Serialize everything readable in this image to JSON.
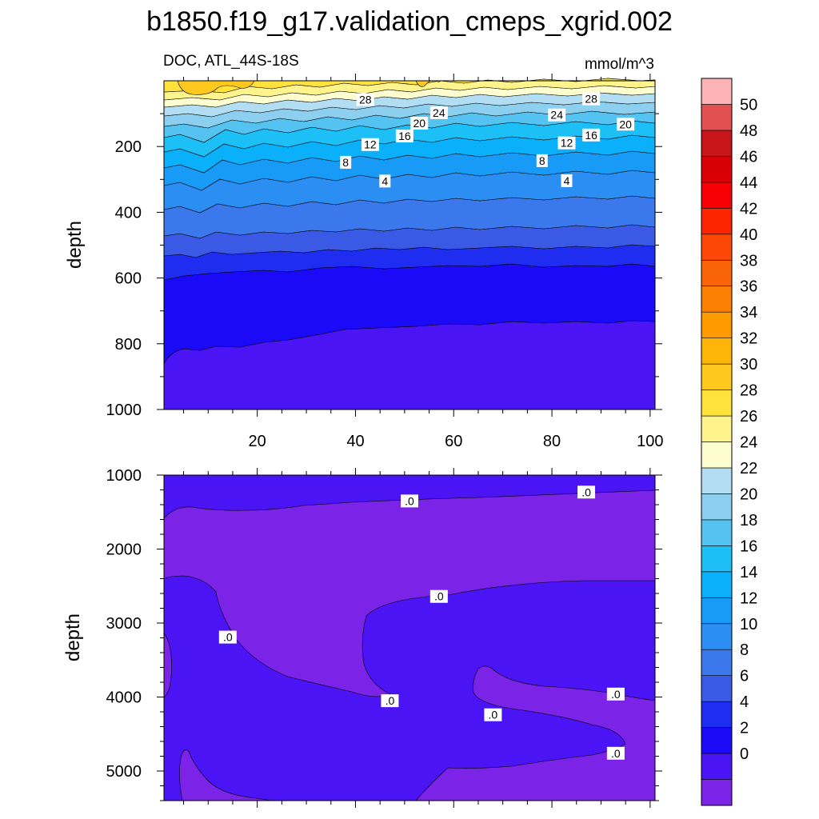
{
  "title": "b1850.f19_g17.validation_cmeps_xgrid.002",
  "left_subtitle": "DOC, ATL_44S-18S",
  "right_subtitle": "mmol/m^3",
  "colors": {
    "levels": [
      "#7b24e8",
      "#4a14f4",
      "#1a0af8",
      "#1f2df0",
      "#3a5ae6",
      "#3a78ec",
      "#2a8ef2",
      "#179bf7",
      "#0ab0fa",
      "#1cc0f6",
      "#55c3f1",
      "#8ccfee",
      "#b2ddf3",
      "#fdfdd0",
      "#fff38b",
      "#ffe23b",
      "#fec81e",
      "#ffb508",
      "#ff9a00",
      "#fb8004",
      "#f86406",
      "#fc4706",
      "#fd2400",
      "#f70005",
      "#d80005",
      "#c8141b",
      "#e35050",
      "#fdb2b5"
    ]
  },
  "chart_data": [
    {
      "type": "contour",
      "panel": "top",
      "title": "",
      "xlabel": "",
      "ylabel": "depth",
      "xlim": [
        1,
        101
      ],
      "ylim": [
        1000,
        0
      ],
      "x_ticks": [
        "20",
        "40",
        "60",
        "80",
        "100"
      ],
      "y_ticks": [
        "200",
        "400",
        "600",
        "800",
        "1000"
      ],
      "approx_isoline_depths": [
        {
          "level": 28,
          "depth": 62
        },
        {
          "level": 24,
          "depth": 100
        },
        {
          "level": 20,
          "depth": 130
        },
        {
          "level": 16,
          "depth": 162
        },
        {
          "level": 12,
          "depth": 195
        },
        {
          "level": 8,
          "depth": 245
        },
        {
          "level": 4,
          "depth": 300
        },
        {
          "level": 2,
          "depth": 370
        },
        {
          "level": 0,
          "depth": 430
        }
      ],
      "contour_labels": [
        {
          "text": "28",
          "x": 42,
          "depth": 57
        },
        {
          "text": "28",
          "x": 88,
          "depth": 55
        },
        {
          "text": "24",
          "x": 57,
          "depth": 97
        },
        {
          "text": "24",
          "x": 81,
          "depth": 104
        },
        {
          "text": "20",
          "x": 53,
          "depth": 129
        },
        {
          "text": "20",
          "x": 95,
          "depth": 132
        },
        {
          "text": "16",
          "x": 50,
          "depth": 168
        },
        {
          "text": "16",
          "x": 88,
          "depth": 165
        },
        {
          "text": "12",
          "x": 43,
          "depth": 194
        },
        {
          "text": "12",
          "x": 83,
          "depth": 189
        },
        {
          "text": "8",
          "x": 38,
          "depth": 248
        },
        {
          "text": "8",
          "x": 78,
          "depth": 243
        },
        {
          "text": "4",
          "x": 46,
          "depth": 305
        },
        {
          "text": "4",
          "x": 83,
          "depth": 304
        }
      ]
    },
    {
      "type": "contour",
      "panel": "bottom",
      "title": "",
      "xlabel": "",
      "ylabel": "depth",
      "xlim": [
        1,
        101
      ],
      "ylim": [
        5400,
        1000
      ],
      "x_ticks": [],
      "y_ticks": [
        "1000",
        "2000",
        "3000",
        "4000",
        "5000"
      ],
      "field_levels": [
        0,
        -1
      ],
      "contour_labels": [
        {
          "text": ".0",
          "x": 51,
          "depth": 1350
        },
        {
          "text": ".0",
          "x": 87,
          "depth": 1230
        },
        {
          "text": ".0",
          "x": 57,
          "depth": 2640
        },
        {
          "text": ".0",
          "x": 14,
          "depth": 3190
        },
        {
          "text": ".0",
          "x": 47,
          "depth": 4050
        },
        {
          "text": ".0",
          "x": 68,
          "depth": 4240
        },
        {
          "text": ".0",
          "x": 93,
          "depth": 3960
        },
        {
          "text": ".0",
          "x": 93,
          "depth": 4760
        }
      ]
    },
    {
      "type": "colorbar",
      "orientation": "vertical",
      "labels": [
        "50",
        "48",
        "46",
        "44",
        "42",
        "40",
        "38",
        "36",
        "34",
        "32",
        "30",
        "28",
        "26",
        "24",
        "22",
        "20",
        "18",
        "16",
        "14",
        "12",
        "10",
        "8",
        "6",
        "4",
        "2",
        "0"
      ]
    }
  ]
}
